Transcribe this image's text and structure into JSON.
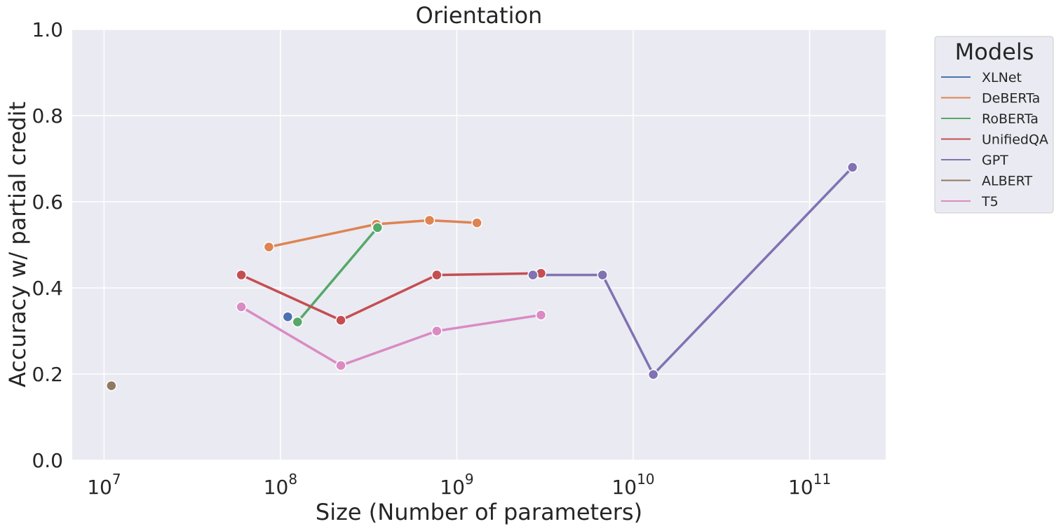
{
  "chart_data": {
    "type": "line",
    "title": "Orientation",
    "xlabel": "Size (Number of parameters)",
    "ylabel": "Accuracy w/ partial credit",
    "xscale": "log",
    "xlim": [
      6600000.0,
      270000000000.0
    ],
    "ylim": [
      0.0,
      1.0
    ],
    "xticks": [
      {
        "value": 10000000.0,
        "base": "10",
        "exp": "7"
      },
      {
        "value": 100000000.0,
        "base": "10",
        "exp": "8"
      },
      {
        "value": 1000000000.0,
        "base": "10",
        "exp": "9"
      },
      {
        "value": 10000000000.0,
        "base": "10",
        "exp": "10"
      },
      {
        "value": 100000000000.0,
        "base": "10",
        "exp": "11"
      }
    ],
    "yticks": [
      "0.0",
      "0.2",
      "0.4",
      "0.6",
      "0.8",
      "1.0"
    ],
    "grid": true,
    "legend": {
      "title": "Models",
      "placement": "outside top-right"
    },
    "series": [
      {
        "name": "XLNet",
        "color": "#4C72B0",
        "x": [
          110000000.0
        ],
        "y": [
          0.333
        ]
      },
      {
        "name": "DeBERTa",
        "color": "#DD8452",
        "x": [
          86000000.0,
          350000000.0,
          700000000.0,
          1300000000.0
        ],
        "y": [
          0.495,
          0.548,
          0.557,
          0.551
        ]
      },
      {
        "name": "RoBERTa",
        "color": "#55A868",
        "x": [
          125000000.0,
          355000000.0
        ],
        "y": [
          0.321,
          0.54
        ]
      },
      {
        "name": "UnifiedQA",
        "color": "#C44E52",
        "x": [
          60000000.0,
          220000000.0,
          770000000.0,
          3000000000.0
        ],
        "y": [
          0.43,
          0.325,
          0.43,
          0.434
        ]
      },
      {
        "name": "GPT",
        "color": "#8172B3",
        "x": [
          2700000000.0,
          6700000000.0,
          13000000000.0,
          175000000000.0
        ],
        "y": [
          0.43,
          0.43,
          0.199,
          0.68
        ]
      },
      {
        "name": "ALBERT",
        "color": "#937860",
        "x": [
          11000000.0
        ],
        "y": [
          0.173
        ]
      },
      {
        "name": "T5",
        "color": "#DA8BC3",
        "x": [
          60000000.0,
          220000000.0,
          770000000.0,
          3000000000.0
        ],
        "y": [
          0.356,
          0.22,
          0.3,
          0.337
        ]
      }
    ]
  }
}
